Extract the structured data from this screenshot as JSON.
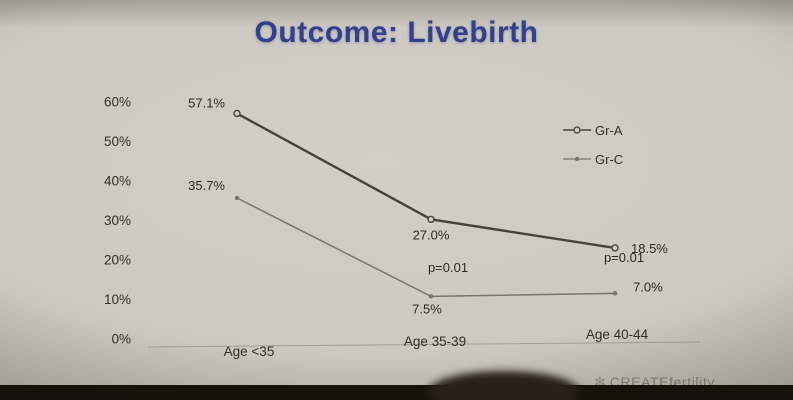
{
  "slide": {
    "title": "Outcome: Livebirth",
    "title_color": "#32408e",
    "bg_color": "#d0ccc3"
  },
  "chart_data": {
    "type": "line",
    "title": "Outcome: Livebirth",
    "categories": [
      "Age <35",
      "Age 35-39",
      "Age 40-44"
    ],
    "y_ticks": [
      "60%",
      "50%",
      "40%",
      "30%",
      "20%",
      "10%",
      "0%"
    ],
    "ylim": [
      0,
      60
    ],
    "grid": false,
    "legend_position": "right",
    "series": [
      {
        "name": "Gr-A",
        "values": [
          57.1,
          27.0,
          18.5
        ],
        "point_labels": [
          "57.1%",
          "27.0%",
          "18.5%"
        ],
        "marker": "open-circle",
        "color": "#45433f"
      },
      {
        "name": "Gr-C",
        "values": [
          35.7,
          7.5,
          7.0
        ],
        "point_labels": [
          "35.7%",
          "7.5%",
          "7.0%"
        ],
        "marker": "dot",
        "color": "#787570"
      }
    ],
    "annotations": [
      {
        "text": "p=0.01",
        "category": "Age 35-39"
      },
      {
        "text": "p=0.01",
        "category": "Age 40-44"
      }
    ]
  },
  "footer": {
    "logo_text": "CREATEfertility"
  }
}
